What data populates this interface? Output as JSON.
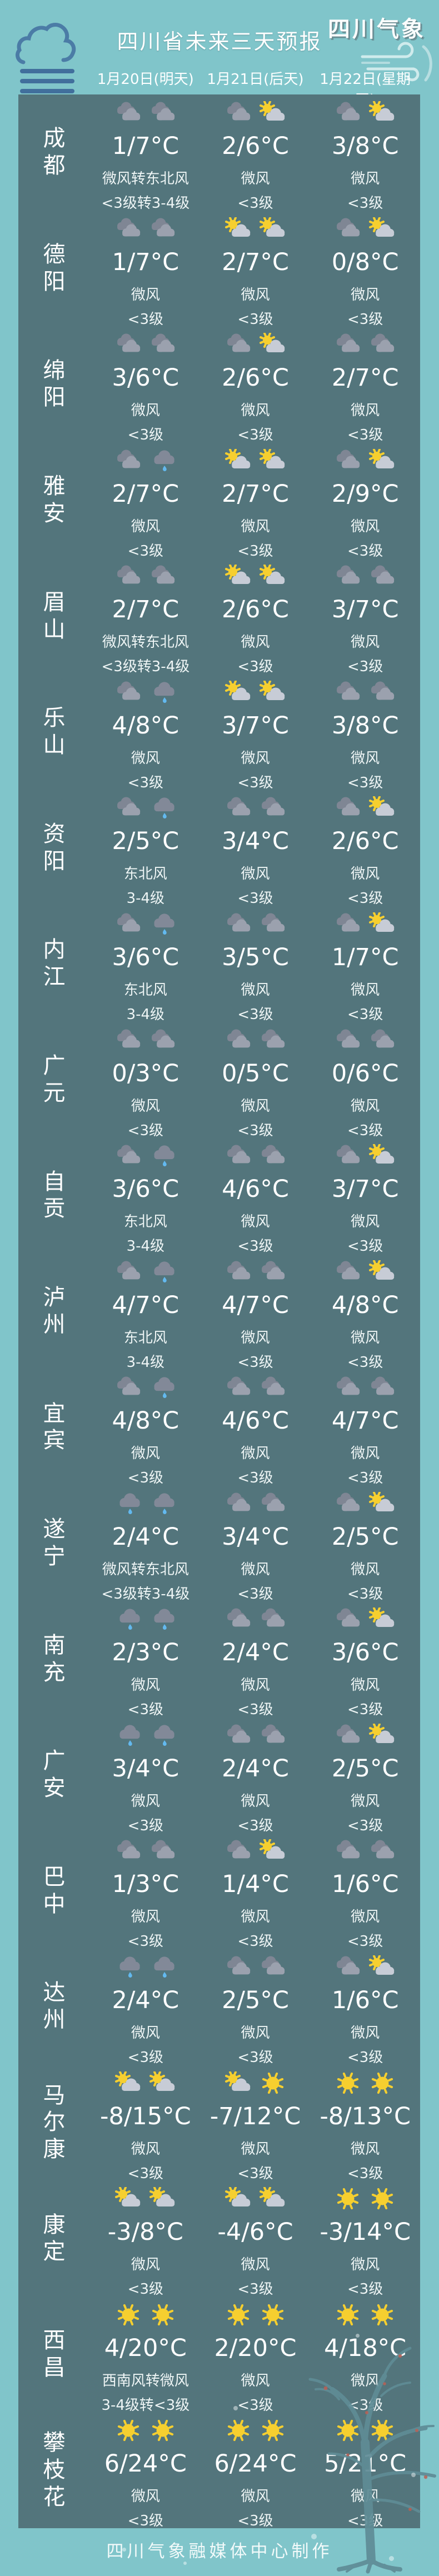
{
  "header": {
    "logo": "四川气象",
    "title": "四川省未来三天预报",
    "dates": [
      "1月20日(明天)",
      "1月21日(后天)",
      "1月22日(星期四)"
    ]
  },
  "footer": {
    "credit": "四川气象融媒体中心制作"
  },
  "colors": {
    "background": "#80c5ca",
    "panel": "#53757c",
    "text": "#ffffff",
    "sun": "#f6cf2f",
    "cloud_dark": "#7f8694",
    "cloud_light": "#c7ccd6",
    "rain_drop": "#63b9ef",
    "fog_icon_blue": "#4b7ca6"
  },
  "icon_legend": {
    "cloud": "overcast-cloud-icon",
    "suncloud": "sun-behind-cloud-icon",
    "rain": "rain-cloud-icon",
    "sun": "sun-icon"
  },
  "rows": [
    {
      "city": "成都",
      "days": [
        {
          "icons": [
            "cloud",
            "cloud"
          ],
          "temp": "1/7°C",
          "wind": "微风转东北风",
          "level": "<3级转3-4级"
        },
        {
          "icons": [
            "cloud",
            "suncloud"
          ],
          "temp": "2/6°C",
          "wind": "微风",
          "level": "<3级"
        },
        {
          "icons": [
            "cloud",
            "suncloud"
          ],
          "temp": "3/8°C",
          "wind": "微风",
          "level": "<3级"
        }
      ]
    },
    {
      "city": "德阳",
      "days": [
        {
          "icons": [
            "cloud",
            "cloud"
          ],
          "temp": "1/7°C",
          "wind": "微风",
          "level": "<3级"
        },
        {
          "icons": [
            "suncloud",
            "suncloud"
          ],
          "temp": "2/7°C",
          "wind": "微风",
          "level": "<3级"
        },
        {
          "icons": [
            "cloud",
            "suncloud"
          ],
          "temp": "0/8°C",
          "wind": "微风",
          "level": "<3级"
        }
      ]
    },
    {
      "city": "绵阳",
      "days": [
        {
          "icons": [
            "cloud",
            "cloud"
          ],
          "temp": "3/6°C",
          "wind": "微风",
          "level": "<3级"
        },
        {
          "icons": [
            "cloud",
            "suncloud"
          ],
          "temp": "2/6°C",
          "wind": "微风",
          "level": "<3级"
        },
        {
          "icons": [
            "cloud",
            "cloud"
          ],
          "temp": "2/7°C",
          "wind": "微风",
          "level": "<3级"
        }
      ]
    },
    {
      "city": "雅安",
      "days": [
        {
          "icons": [
            "cloud",
            "rain"
          ],
          "temp": "2/7°C",
          "wind": "微风",
          "level": "<3级"
        },
        {
          "icons": [
            "suncloud",
            "suncloud"
          ],
          "temp": "2/7°C",
          "wind": "微风",
          "level": "<3级"
        },
        {
          "icons": [
            "cloud",
            "suncloud"
          ],
          "temp": "2/9°C",
          "wind": "微风",
          "level": "<3级"
        }
      ]
    },
    {
      "city": "眉山",
      "days": [
        {
          "icons": [
            "cloud",
            "cloud"
          ],
          "temp": "2/7°C",
          "wind": "微风转东北风",
          "level": "<3级转3-4级"
        },
        {
          "icons": [
            "suncloud",
            "suncloud"
          ],
          "temp": "2/6°C",
          "wind": "微风",
          "level": "<3级"
        },
        {
          "icons": [
            "cloud",
            "cloud"
          ],
          "temp": "3/7°C",
          "wind": "微风",
          "level": "<3级"
        }
      ]
    },
    {
      "city": "乐山",
      "days": [
        {
          "icons": [
            "cloud",
            "rain"
          ],
          "temp": "4/8°C",
          "wind": "微风",
          "level": "<3级"
        },
        {
          "icons": [
            "suncloud",
            "suncloud"
          ],
          "temp": "3/7°C",
          "wind": "微风",
          "level": "<3级"
        },
        {
          "icons": [
            "cloud",
            "cloud"
          ],
          "temp": "3/8°C",
          "wind": "微风",
          "level": "<3级"
        }
      ]
    },
    {
      "city": "资阳",
      "days": [
        {
          "icons": [
            "cloud",
            "rain"
          ],
          "temp": "2/5°C",
          "wind": "东北风",
          "level": "3-4级"
        },
        {
          "icons": [
            "cloud",
            "cloud"
          ],
          "temp": "3/4°C",
          "wind": "微风",
          "level": "<3级"
        },
        {
          "icons": [
            "cloud",
            "suncloud"
          ],
          "temp": "2/6°C",
          "wind": "微风",
          "level": "<3级"
        }
      ]
    },
    {
      "city": "内江",
      "days": [
        {
          "icons": [
            "cloud",
            "rain"
          ],
          "temp": "3/6°C",
          "wind": "东北风",
          "level": "3-4级"
        },
        {
          "icons": [
            "cloud",
            "cloud"
          ],
          "temp": "3/5°C",
          "wind": "微风",
          "level": "<3级"
        },
        {
          "icons": [
            "cloud",
            "suncloud"
          ],
          "temp": "1/7°C",
          "wind": "微风",
          "level": "<3级"
        }
      ]
    },
    {
      "city": "广元",
      "days": [
        {
          "icons": [
            "cloud",
            "cloud"
          ],
          "temp": "0/3°C",
          "wind": "微风",
          "level": "<3级"
        },
        {
          "icons": [
            "cloud",
            "cloud"
          ],
          "temp": "0/5°C",
          "wind": "微风",
          "level": "<3级"
        },
        {
          "icons": [
            "cloud",
            "cloud"
          ],
          "temp": "0/6°C",
          "wind": "微风",
          "level": "<3级"
        }
      ]
    },
    {
      "city": "自贡",
      "days": [
        {
          "icons": [
            "cloud",
            "rain"
          ],
          "temp": "3/6°C",
          "wind": "东北风",
          "level": "3-4级"
        },
        {
          "icons": [
            "cloud",
            "cloud"
          ],
          "temp": "4/6°C",
          "wind": "微风",
          "level": "<3级"
        },
        {
          "icons": [
            "cloud",
            "suncloud"
          ],
          "temp": "3/7°C",
          "wind": "微风",
          "level": "<3级"
        }
      ]
    },
    {
      "city": "泸州",
      "days": [
        {
          "icons": [
            "cloud",
            "rain"
          ],
          "temp": "4/7°C",
          "wind": "东北风",
          "level": "3-4级"
        },
        {
          "icons": [
            "cloud",
            "cloud"
          ],
          "temp": "4/7°C",
          "wind": "微风",
          "level": "<3级"
        },
        {
          "icons": [
            "cloud",
            "suncloud"
          ],
          "temp": "4/8°C",
          "wind": "微风",
          "level": "<3级"
        }
      ]
    },
    {
      "city": "宜宾",
      "days": [
        {
          "icons": [
            "cloud",
            "rain"
          ],
          "temp": "4/8°C",
          "wind": "微风",
          "level": "<3级"
        },
        {
          "icons": [
            "cloud",
            "cloud"
          ],
          "temp": "4/6°C",
          "wind": "微风",
          "level": "<3级"
        },
        {
          "icons": [
            "cloud",
            "cloud"
          ],
          "temp": "4/7°C",
          "wind": "微风",
          "level": "<3级"
        }
      ]
    },
    {
      "city": "遂宁",
      "days": [
        {
          "icons": [
            "rain",
            "rain"
          ],
          "temp": "2/4°C",
          "wind": "微风转东北风",
          "level": "<3级转3-4级"
        },
        {
          "icons": [
            "cloud",
            "cloud"
          ],
          "temp": "3/4°C",
          "wind": "微风",
          "level": "<3级"
        },
        {
          "icons": [
            "cloud",
            "suncloud"
          ],
          "temp": "2/5°C",
          "wind": "微风",
          "level": "<3级"
        }
      ]
    },
    {
      "city": "南充",
      "days": [
        {
          "icons": [
            "rain",
            "rain"
          ],
          "temp": "2/3°C",
          "wind": "微风",
          "level": "<3级"
        },
        {
          "icons": [
            "cloud",
            "cloud"
          ],
          "temp": "2/4°C",
          "wind": "微风",
          "level": "<3级"
        },
        {
          "icons": [
            "cloud",
            "suncloud"
          ],
          "temp": "3/6°C",
          "wind": "微风",
          "level": "<3级"
        }
      ]
    },
    {
      "city": "广安",
      "days": [
        {
          "icons": [
            "rain",
            "rain"
          ],
          "temp": "3/4°C",
          "wind": "微风",
          "level": "<3级"
        },
        {
          "icons": [
            "cloud",
            "cloud"
          ],
          "temp": "2/4°C",
          "wind": "微风",
          "level": "<3级"
        },
        {
          "icons": [
            "cloud",
            "suncloud"
          ],
          "temp": "2/5°C",
          "wind": "微风",
          "level": "<3级"
        }
      ]
    },
    {
      "city": "巴中",
      "days": [
        {
          "icons": [
            "cloud",
            "cloud"
          ],
          "temp": "1/3°C",
          "wind": "微风",
          "level": "<3级"
        },
        {
          "icons": [
            "cloud",
            "suncloud"
          ],
          "temp": "1/4°C",
          "wind": "微风",
          "level": "<3级"
        },
        {
          "icons": [
            "cloud",
            "cloud"
          ],
          "temp": "1/6°C",
          "wind": "微风",
          "level": "<3级"
        }
      ]
    },
    {
      "city": "达州",
      "days": [
        {
          "icons": [
            "rain",
            "rain"
          ],
          "temp": "2/4°C",
          "wind": "微风",
          "level": "<3级"
        },
        {
          "icons": [
            "cloud",
            "cloud"
          ],
          "temp": "2/5°C",
          "wind": "微风",
          "level": "<3级"
        },
        {
          "icons": [
            "cloud",
            "suncloud"
          ],
          "temp": "1/6°C",
          "wind": "微风",
          "level": "<3级"
        }
      ]
    },
    {
      "city": "马尔康",
      "days": [
        {
          "icons": [
            "suncloud",
            "suncloud"
          ],
          "temp": "-8/15°C",
          "wind": "微风",
          "level": "<3级"
        },
        {
          "icons": [
            "suncloud",
            "sun"
          ],
          "temp": "-7/12°C",
          "wind": "微风",
          "level": "<3级"
        },
        {
          "icons": [
            "sun",
            "sun"
          ],
          "temp": "-8/13°C",
          "wind": "微风",
          "level": "<3级"
        }
      ]
    },
    {
      "city": "康定",
      "days": [
        {
          "icons": [
            "suncloud",
            "suncloud"
          ],
          "temp": "-3/8°C",
          "wind": "微风",
          "level": "<3级"
        },
        {
          "icons": [
            "suncloud",
            "suncloud"
          ],
          "temp": "-4/6°C",
          "wind": "微风",
          "level": "<3级"
        },
        {
          "icons": [
            "sun",
            "sun"
          ],
          "temp": "-3/14°C",
          "wind": "微风",
          "level": "<3级"
        }
      ]
    },
    {
      "city": "西昌",
      "days": [
        {
          "icons": [
            "sun",
            "sun"
          ],
          "temp": "4/20°C",
          "wind": "西南风转微风",
          "level": "3-4级转<3级"
        },
        {
          "icons": [
            "sun",
            "sun"
          ],
          "temp": "2/20°C",
          "wind": "微风",
          "level": "<3级"
        },
        {
          "icons": [
            "sun",
            "sun"
          ],
          "temp": "4/18°C",
          "wind": "微风",
          "level": "<3级"
        }
      ]
    },
    {
      "city": "攀枝花",
      "days": [
        {
          "icons": [
            "sun",
            "sun"
          ],
          "temp": "6/24°C",
          "wind": "微风",
          "level": "<3级"
        },
        {
          "icons": [
            "sun",
            "sun"
          ],
          "temp": "6/24°C",
          "wind": "微风",
          "level": "<3级"
        },
        {
          "icons": [
            "sun",
            "sun"
          ],
          "temp": "5/21°C",
          "wind": "微风",
          "level": "<3级"
        }
      ]
    }
  ]
}
